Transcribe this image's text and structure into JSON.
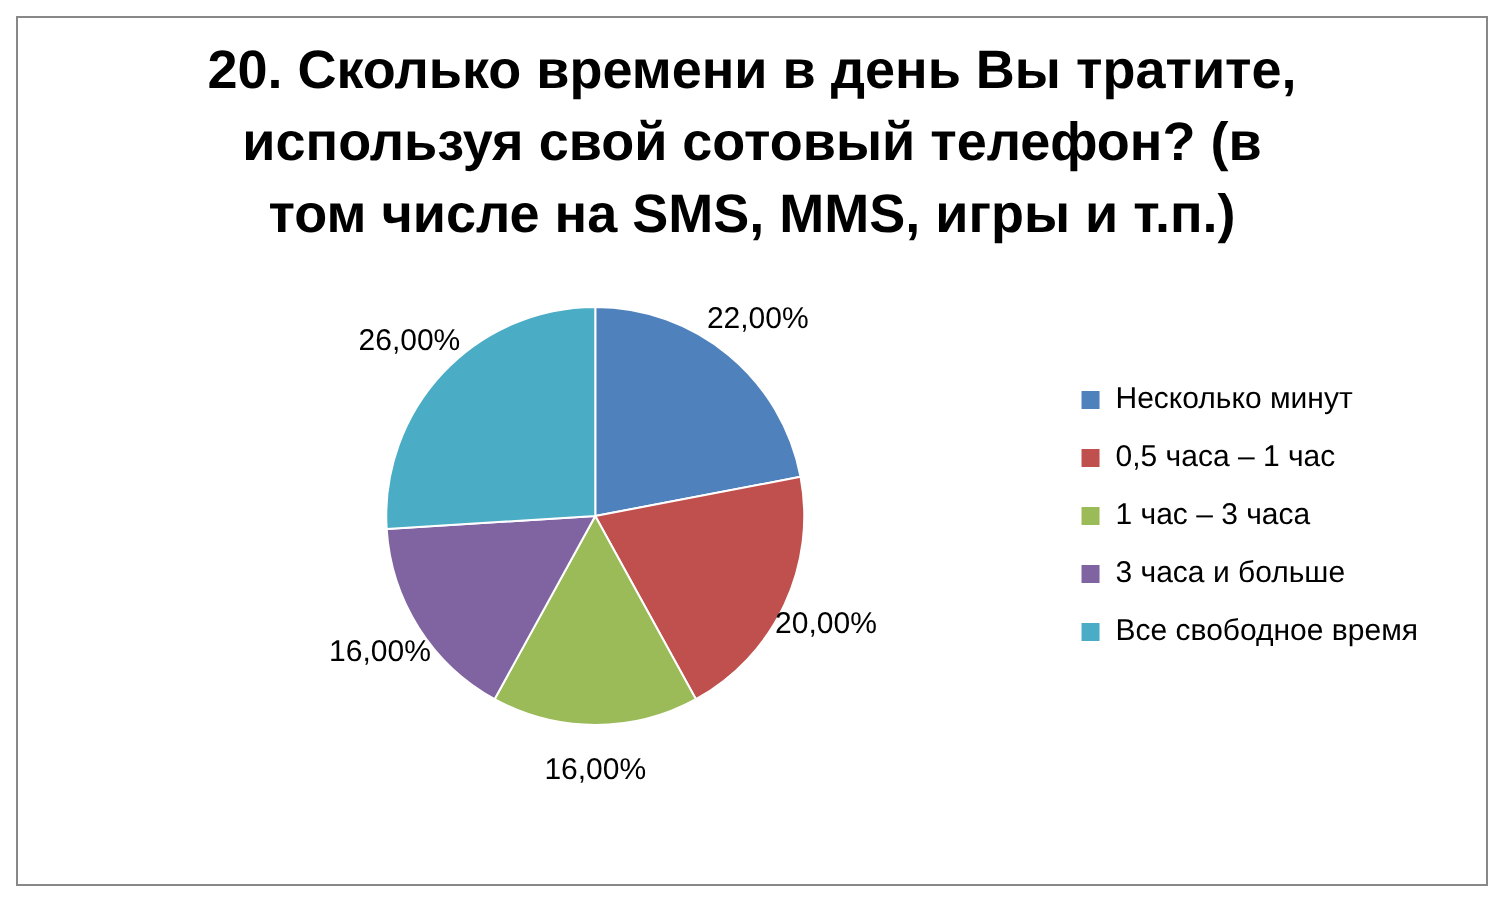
{
  "chart_data": {
    "type": "pie",
    "title": "20. Сколько времени в день Вы тратите, используя свой сотовый телефон? (в том числе на SMS, MMS, игры и т.п.)",
    "categories": [
      "Несколько минут",
      "0,5 часа – 1 час",
      "1 час – 3 часа",
      "3 часа и больше",
      "Все свободное время"
    ],
    "values": [
      22,
      20,
      16,
      16,
      26
    ],
    "value_labels": [
      "22,00%",
      "20,00%",
      "16,00%",
      "16,00%",
      "26,00%"
    ],
    "colors": [
      "#4f81bd",
      "#c0504d",
      "#9bbb59",
      "#8064a2",
      "#4bacc6"
    ],
    "legend": "right"
  }
}
